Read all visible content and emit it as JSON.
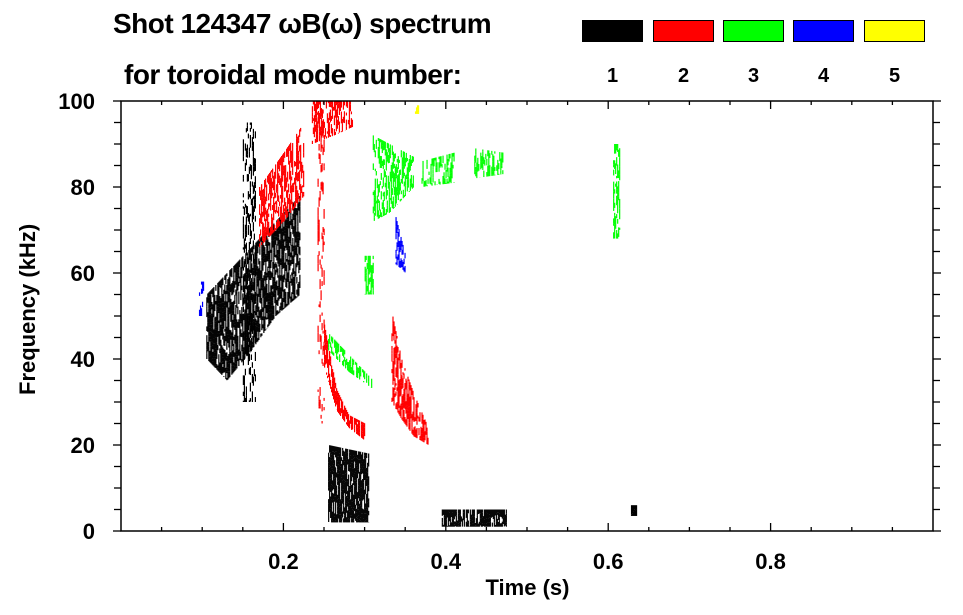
{
  "chart_data": {
    "type": "heatmap",
    "title_line1": "Shot 124347 ωB(ω) spectrum",
    "title_line2": "for toroidal mode number:",
    "xlabel": "Time (s)",
    "ylabel": "Frequency (kHz)",
    "xlim": [
      0,
      1.0
    ],
    "ylim": [
      0,
      100
    ],
    "x_ticks": [
      0.2,
      0.4,
      0.6,
      0.8
    ],
    "x_tick_labels": [
      "0.2",
      "0.4",
      "0.6",
      "0.8"
    ],
    "y_ticks": [
      0,
      20,
      40,
      60,
      80,
      100
    ],
    "y_tick_labels": [
      "0",
      "20",
      "40",
      "60",
      "80",
      "100"
    ],
    "legend": [
      {
        "mode": "1",
        "color": "#000000"
      },
      {
        "mode": "2",
        "color": "#ff0000"
      },
      {
        "mode": "3",
        "color": "#00ff00"
      },
      {
        "mode": "4",
        "color": "#0000ff"
      },
      {
        "mode": "5",
        "color": "#ffff00"
      }
    ],
    "legend_placement": "top-right",
    "features": [
      {
        "mode": 1,
        "t": [
          0.105,
          0.13,
          0.16,
          0.19,
          0.22
        ],
        "f_low": [
          40,
          35,
          42,
          50,
          55
        ],
        "f_high": [
          55,
          60,
          66,
          72,
          78
        ],
        "density": 0.75
      },
      {
        "mode": 1,
        "t": [
          0.15,
          0.165
        ],
        "f_low": [
          30,
          30
        ],
        "f_high": [
          95,
          95
        ],
        "density": 0.35
      },
      {
        "mode": 1,
        "t": [
          0.255,
          0.305
        ],
        "f_low": [
          2,
          2
        ],
        "f_high": [
          20,
          18
        ],
        "density": 0.85
      },
      {
        "mode": 1,
        "t": [
          0.395,
          0.475
        ],
        "f_low": [
          1,
          1
        ],
        "f_high": [
          5,
          5
        ],
        "density": 0.8
      },
      {
        "mode": 1,
        "t": [
          0.628,
          0.635
        ],
        "f_low": [
          3.5,
          3.5
        ],
        "f_high": [
          6,
          6
        ],
        "density": 0.8
      },
      {
        "mode": 2,
        "t": [
          0.17,
          0.2,
          0.225
        ],
        "f_low": [
          66,
          72,
          78
        ],
        "f_high": [
          80,
          88,
          95
        ],
        "density": 0.6
      },
      {
        "mode": 2,
        "t": [
          0.235,
          0.262,
          0.285
        ],
        "f_low": [
          90,
          92,
          94
        ],
        "f_high": [
          100,
          100,
          100
        ],
        "density": 0.55
      },
      {
        "mode": 2,
        "t": [
          0.242,
          0.25
        ],
        "f_low": [
          25,
          25
        ],
        "f_high": [
          98,
          98
        ],
        "density": 0.25
      },
      {
        "mode": 2,
        "t": [
          0.25,
          0.265,
          0.28,
          0.3
        ],
        "f_low": [
          38,
          28,
          24,
          21
        ],
        "f_high": [
          48,
          33,
          27,
          25
        ],
        "density": 0.8
      },
      {
        "mode": 2,
        "t": [
          0.333,
          0.345,
          0.36,
          0.378
        ],
        "f_low": [
          30,
          26,
          22,
          20
        ],
        "f_high": [
          51,
          40,
          32,
          24
        ],
        "density": 0.65
      },
      {
        "mode": 3,
        "t": [
          0.31,
          0.33,
          0.36
        ],
        "f_low": [
          72,
          74,
          80
        ],
        "f_high": [
          92,
          90,
          87
        ],
        "density": 0.55
      },
      {
        "mode": 3,
        "t": [
          0.37,
          0.41
        ],
        "f_low": [
          80,
          81
        ],
        "f_high": [
          86,
          88
        ],
        "density": 0.4
      },
      {
        "mode": 3,
        "t": [
          0.435,
          0.47
        ],
        "f_low": [
          82,
          83
        ],
        "f_high": [
          89,
          88
        ],
        "density": 0.5
      },
      {
        "mode": 3,
        "t": [
          0.606,
          0.614
        ],
        "f_low": [
          68,
          68
        ],
        "f_high": [
          90,
          90
        ],
        "density": 0.6
      },
      {
        "mode": 3,
        "t": [
          0.3,
          0.31
        ],
        "f_low": [
          55,
          55
        ],
        "f_high": [
          64,
          64
        ],
        "density": 0.6
      },
      {
        "mode": 3,
        "t": [
          0.255,
          0.28,
          0.31
        ],
        "f_low": [
          42,
          37,
          33
        ],
        "f_high": [
          46,
          41,
          35
        ],
        "density": 0.55
      },
      {
        "mode": 4,
        "t": [
          0.338,
          0.35
        ],
        "f_low": [
          62,
          60
        ],
        "f_high": [
          73,
          64
        ],
        "density": 0.7
      },
      {
        "mode": 4,
        "t": [
          0.096,
          0.102
        ],
        "f_low": [
          50,
          50
        ],
        "f_high": [
          58,
          58
        ],
        "density": 0.5
      },
      {
        "mode": 5,
        "t": [
          0.362,
          0.366
        ],
        "f_low": [
          97,
          97
        ],
        "f_high": [
          99,
          99
        ],
        "density": 0.8
      }
    ]
  }
}
